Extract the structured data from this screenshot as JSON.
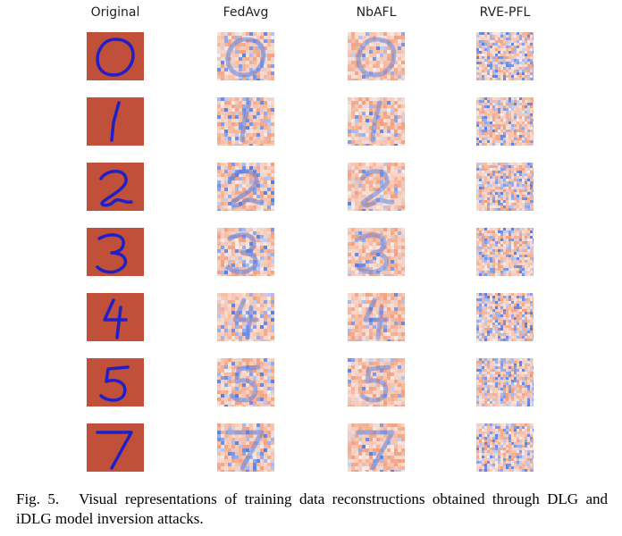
{
  "figure": {
    "column_headers": [
      "Original",
      "FedAvg",
      "NbAFL",
      "RVE-PFL"
    ],
    "row_digits": [
      "0",
      "1",
      "2",
      "3",
      "4",
      "5",
      "7"
    ],
    "colors": {
      "original_background": "#c0503a",
      "original_digit": "#2020c8",
      "noise_warm": "#f2a07f",
      "noise_cool": "#5a7de0",
      "noise_neutral": "#e8c8c0"
    }
  },
  "caption": {
    "label": "Fig. 5.",
    "text": "Visual representations of training data reconstructions obtained through DLG and iDLG model inversion attacks."
  }
}
